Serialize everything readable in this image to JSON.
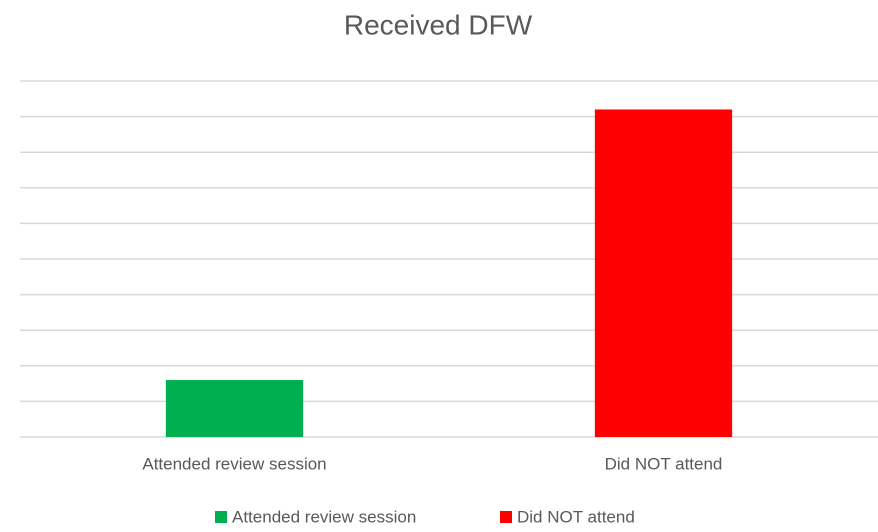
{
  "chart_data": {
    "type": "bar",
    "title": "Received DFW",
    "categories": [
      "Attended review session",
      "Did NOT attend"
    ],
    "values": [
      1.6,
      9.2
    ],
    "colors": [
      "#00b050",
      "#ff0000"
    ],
    "ylim": [
      0,
      10
    ],
    "yticks": [
      0,
      1,
      2,
      3,
      4,
      5,
      6,
      7,
      8,
      9,
      10
    ],
    "grid": true,
    "legend": "bottom"
  }
}
